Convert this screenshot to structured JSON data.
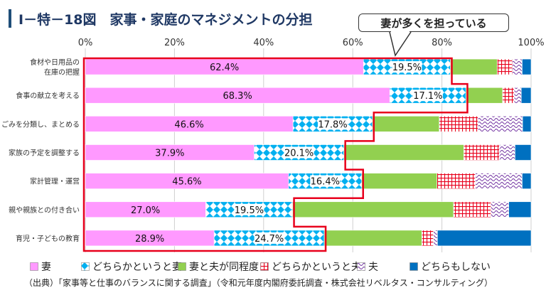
{
  "title": "Ⅰ－特－18図　家事・家庭のマネジメントの分担",
  "callout": "妻が多くを担っている",
  "source": "（出典）「家事等と仕事のバランスに関する調査」（令和元年度内閣府委託調査・株式会社リベルタス・コンサルティング）",
  "chart_data": {
    "type": "bar",
    "orientation": "horizontal",
    "stacked": true,
    "percent": true,
    "xlim": [
      0,
      100
    ],
    "x_ticks": [
      "0%",
      "20%",
      "40%",
      "60%",
      "80%",
      "100%"
    ],
    "categories": [
      [
        "食材や日用品の",
        "在庫の把握"
      ],
      [
        "食事の献立を考える"
      ],
      [
        "ごみを分類し、まとめる"
      ],
      [
        "家族の予定を調整する"
      ],
      [
        "家計管理・運営"
      ],
      [
        "親や親族との付き合い"
      ],
      [
        "育児・子どもの教育"
      ]
    ],
    "series": [
      {
        "name": "妻",
        "color": "#ff99ff",
        "pattern": "solid",
        "values": [
          62.4,
          68.3,
          46.6,
          37.9,
          45.6,
          27.0,
          28.9
        ],
        "labels": [
          "62.4%",
          "68.3%",
          "46.6%",
          "37.9%",
          "45.6%",
          "27.0%",
          "28.9%"
        ]
      },
      {
        "name": "どちらかというと妻",
        "color": "#00b0f0",
        "pattern": "diamond",
        "values": [
          19.5,
          17.1,
          17.8,
          20.1,
          16.4,
          19.5,
          24.7
        ],
        "labels": [
          "19.5%",
          "17.1%",
          "17.8%",
          "20.1%",
          "16.4%",
          "19.5%",
          "24.7%"
        ]
      },
      {
        "name": "妻と夫が同程度",
        "color": "#92d050",
        "pattern": "solid",
        "values": [
          10.5,
          8.2,
          15.0,
          26.9,
          16.9,
          36.1,
          21.9
        ]
      },
      {
        "name": "どちらかというと夫",
        "color": "#e8001c",
        "pattern": "grid",
        "values": [
          3.4,
          2.6,
          8.7,
          8.0,
          8.6,
          8.4,
          2.6
        ]
      },
      {
        "name": "夫",
        "color": "#7030a0",
        "pattern": "wave",
        "values": [
          2.2,
          1.6,
          10.0,
          3.5,
          10.5,
          4.0,
          0.9
        ]
      },
      {
        "name": "どちらもしない",
        "color": "#0070c0",
        "pattern": "solid",
        "values": [
          2.0,
          2.2,
          1.9,
          3.6,
          2.0,
          5.0,
          21.0
        ]
      }
    ]
  }
}
